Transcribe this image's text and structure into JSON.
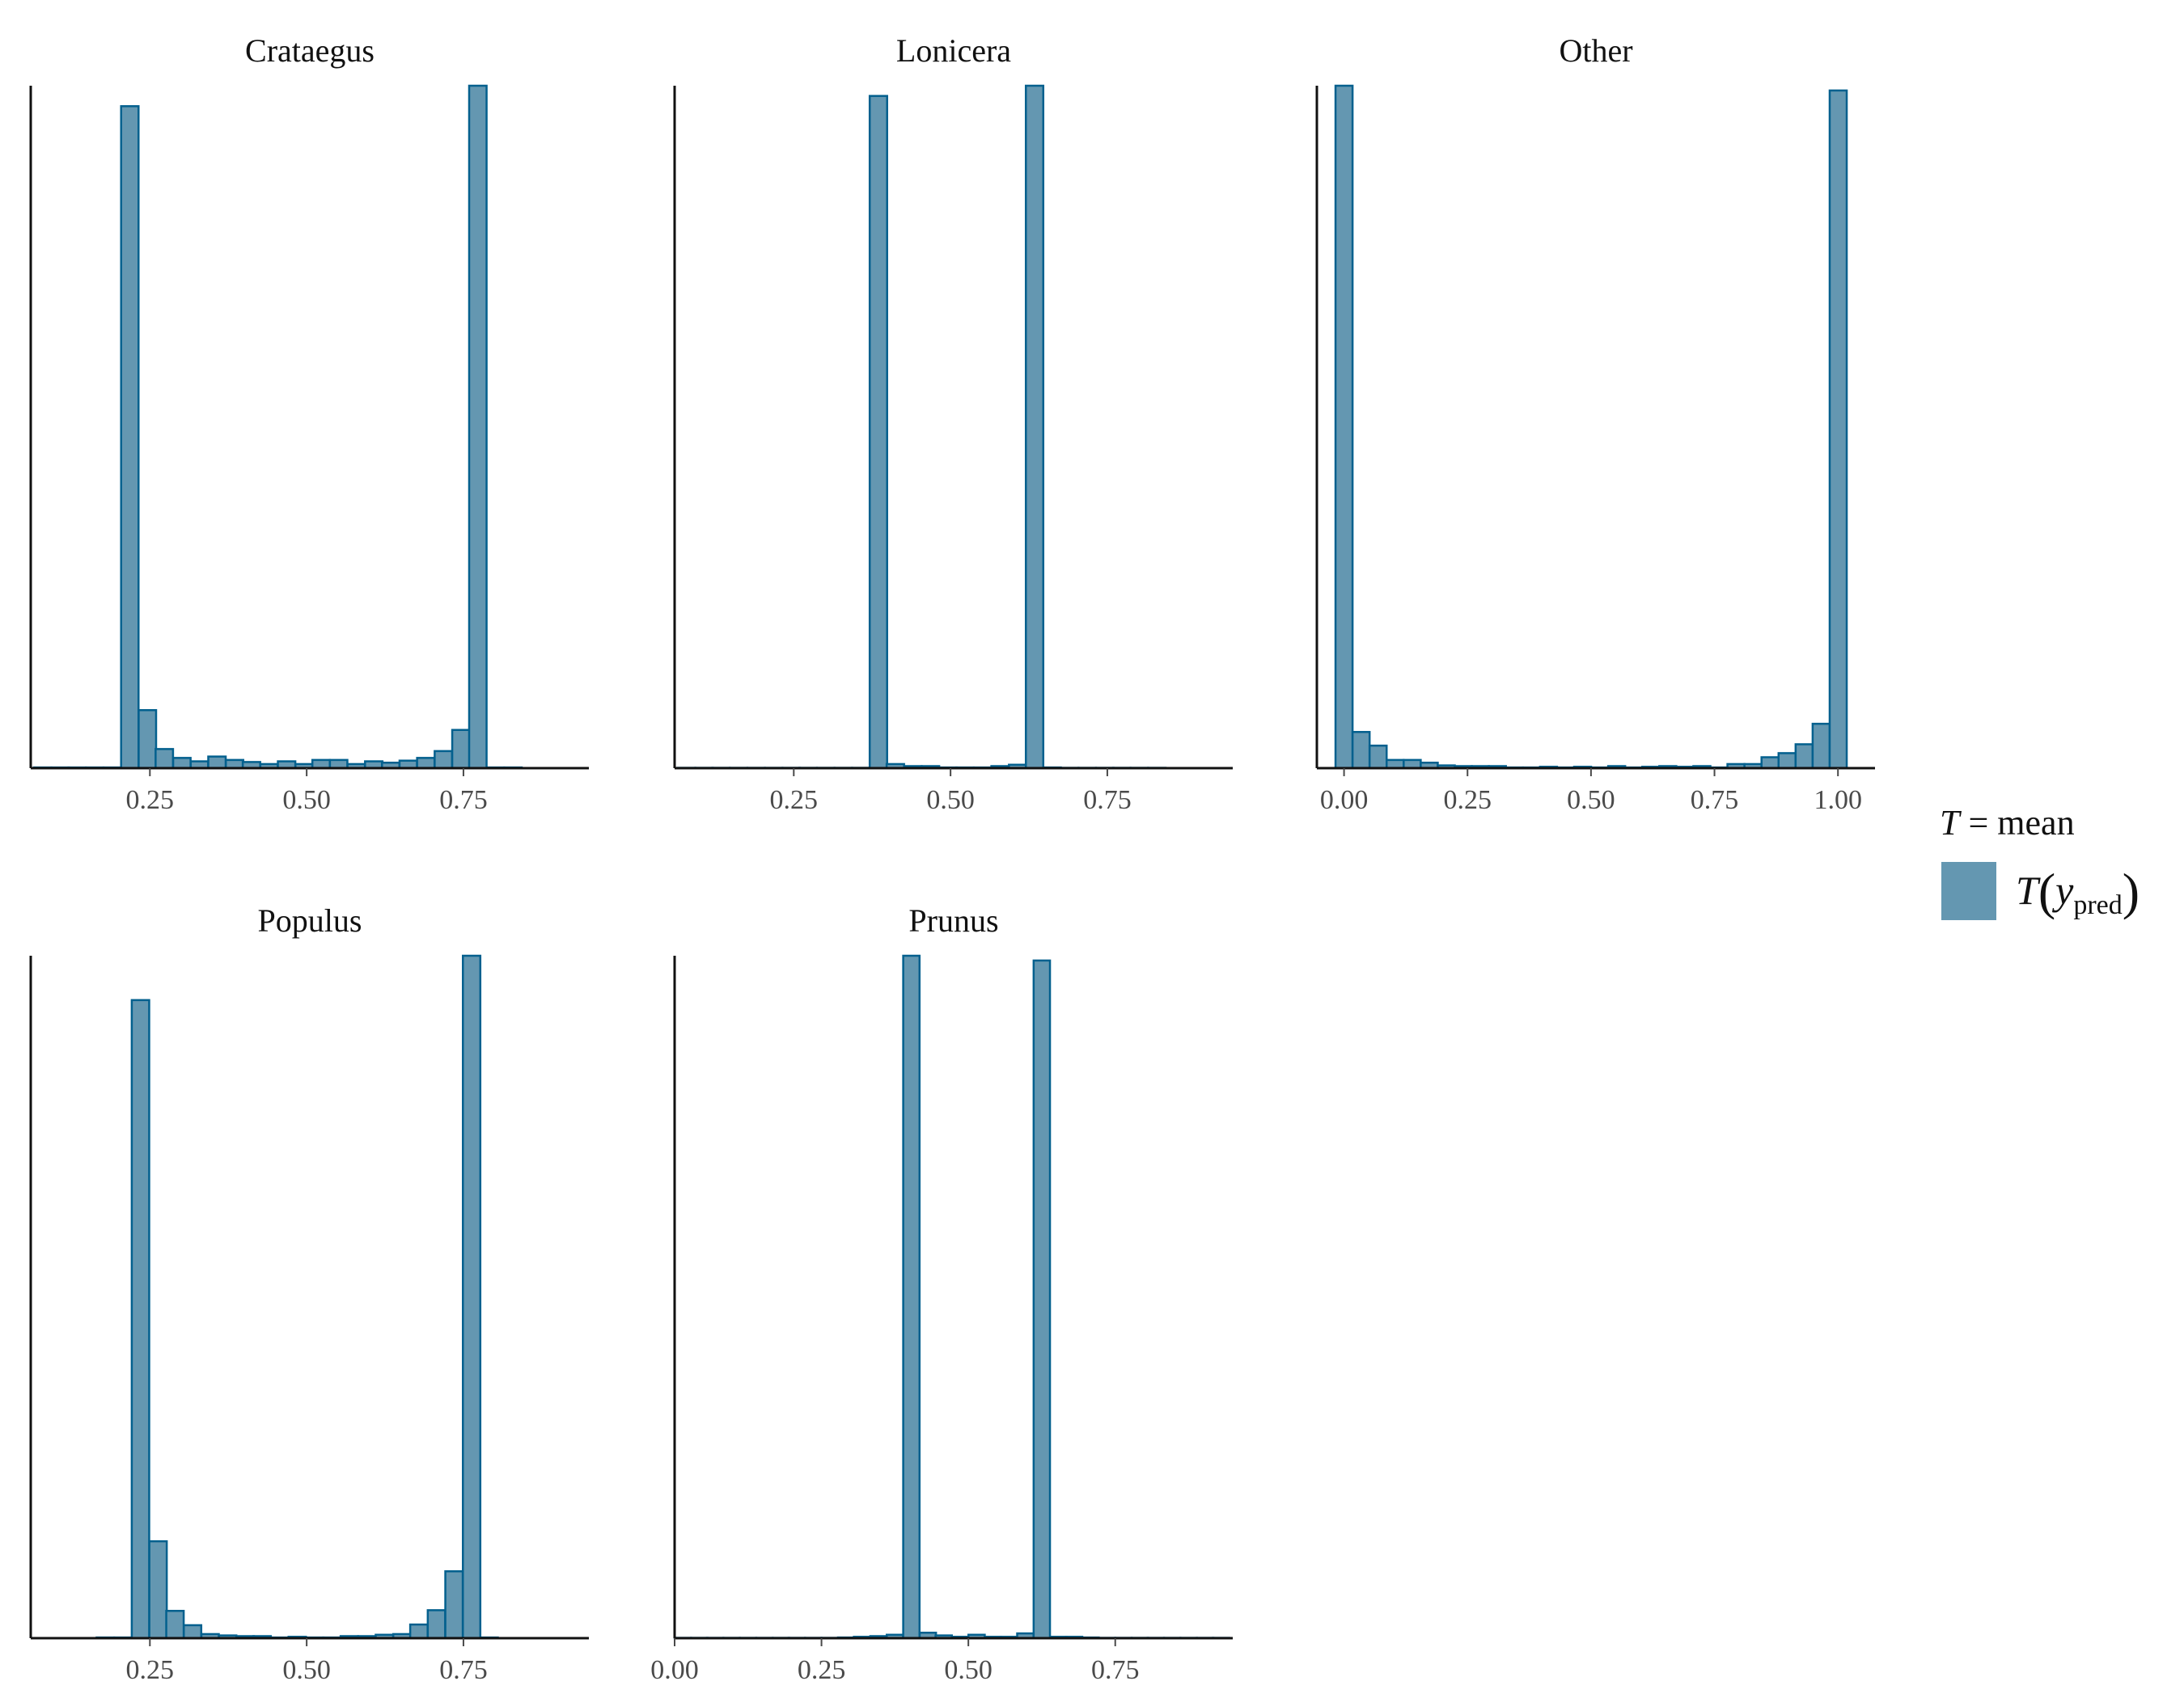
{
  "chart_data": {
    "type": "bar",
    "fill_color": "#6497b1",
    "edge_color": "#03608e",
    "legend": {
      "title_symbol": "T",
      "title_rest": " = mean",
      "entry_T": "T",
      "entry_y": "y",
      "entry_sub": "pred",
      "placement": "right"
    },
    "facets": [
      {
        "title": "Crataegus",
        "xlim": [
          0.06,
          0.95
        ],
        "ticks": [
          "0.25",
          "0.50",
          "0.75"
        ],
        "bar_width": 0.0278,
        "bins": [
          [
            0.079,
            0.1
          ],
          [
            0.107,
            0.1
          ],
          [
            0.134,
            0.1
          ],
          [
            0.162,
            0.1
          ],
          [
            0.19,
            0.1
          ],
          [
            0.218,
            97
          ],
          [
            0.246,
            8.5
          ],
          [
            0.273,
            2.8
          ],
          [
            0.301,
            1.5
          ],
          [
            0.329,
            1.0
          ],
          [
            0.357,
            1.7
          ],
          [
            0.385,
            1.2
          ],
          [
            0.412,
            0.9
          ],
          [
            0.44,
            0.6
          ],
          [
            0.468,
            1.0
          ],
          [
            0.496,
            0.6
          ],
          [
            0.523,
            1.2
          ],
          [
            0.551,
            1.2
          ],
          [
            0.579,
            0.6
          ],
          [
            0.607,
            1.0
          ],
          [
            0.634,
            0.8
          ],
          [
            0.662,
            1.1
          ],
          [
            0.69,
            1.5
          ],
          [
            0.718,
            2.5
          ],
          [
            0.746,
            5.6
          ],
          [
            0.773,
            100
          ],
          [
            0.801,
            0.1
          ],
          [
            0.829,
            0.1
          ]
        ]
      },
      {
        "title": "Lonicera",
        "xlim": [
          0.06,
          0.95
        ],
        "ticks": [
          "0.25",
          "0.50",
          "0.75"
        ],
        "bar_width": 0.0278,
        "bins": [
          [
            0.079,
            0.05
          ],
          [
            0.107,
            0.05
          ],
          [
            0.134,
            0.05
          ],
          [
            0.162,
            0.05
          ],
          [
            0.19,
            0.05
          ],
          [
            0.218,
            0.05
          ],
          [
            0.246,
            0.05
          ],
          [
            0.273,
            0.05
          ],
          [
            0.301,
            0.05
          ],
          [
            0.329,
            0.05
          ],
          [
            0.357,
            0.05
          ],
          [
            0.385,
            98.5
          ],
          [
            0.412,
            0.6
          ],
          [
            0.44,
            0.3
          ],
          [
            0.468,
            0.3
          ],
          [
            0.496,
            0.1
          ],
          [
            0.523,
            0.1
          ],
          [
            0.551,
            0.1
          ],
          [
            0.579,
            0.3
          ],
          [
            0.607,
            0.5
          ],
          [
            0.634,
            100
          ],
          [
            0.662,
            0.1
          ],
          [
            0.69,
            0.05
          ],
          [
            0.718,
            0.05
          ],
          [
            0.746,
            0.05
          ],
          [
            0.773,
            0.05
          ],
          [
            0.801,
            0.05
          ],
          [
            0.829,
            0.05
          ]
        ]
      },
      {
        "title": "Other",
        "xlim": [
          -0.055,
          1.075
        ],
        "ticks": [
          "0.00",
          "0.25",
          "0.50",
          "0.75",
          "1.00"
        ],
        "bar_width": 0.0345,
        "bins": [
          [
            0.0,
            100
          ],
          [
            0.0345,
            5.3
          ],
          [
            0.069,
            3.3
          ],
          [
            0.1035,
            1.2
          ],
          [
            0.138,
            1.2
          ],
          [
            0.1725,
            0.8
          ],
          [
            0.207,
            0.4
          ],
          [
            0.2415,
            0.3
          ],
          [
            0.276,
            0.3
          ],
          [
            0.3105,
            0.3
          ],
          [
            0.345,
            0.1
          ],
          [
            0.3795,
            0.1
          ],
          [
            0.414,
            0.2
          ],
          [
            0.4485,
            0.1
          ],
          [
            0.483,
            0.2
          ],
          [
            0.5175,
            0.1
          ],
          [
            0.552,
            0.3
          ],
          [
            0.5865,
            0.1
          ],
          [
            0.621,
            0.2
          ],
          [
            0.6555,
            0.3
          ],
          [
            0.69,
            0.2
          ],
          [
            0.7245,
            0.3
          ],
          [
            0.759,
            0.1
          ],
          [
            0.7935,
            0.6
          ],
          [
            0.828,
            0.6
          ],
          [
            0.8625,
            1.6
          ],
          [
            0.897,
            2.2
          ],
          [
            0.9315,
            3.5
          ],
          [
            0.966,
            6.5
          ],
          [
            1.0005,
            99.3
          ]
        ]
      },
      {
        "title": "Populus",
        "xlim": [
          0.06,
          0.95
        ],
        "ticks": [
          "0.25",
          "0.50",
          "0.75"
        ],
        "bar_width": 0.0278,
        "bins": [
          [
            0.179,
            0.1
          ],
          [
            0.207,
            0.1
          ],
          [
            0.235,
            93.5
          ],
          [
            0.263,
            14.2
          ],
          [
            0.29,
            4.0
          ],
          [
            0.318,
            1.9
          ],
          [
            0.346,
            0.6
          ],
          [
            0.374,
            0.4
          ],
          [
            0.402,
            0.3
          ],
          [
            0.429,
            0.3
          ],
          [
            0.457,
            0.1
          ],
          [
            0.485,
            0.2
          ],
          [
            0.513,
            0.1
          ],
          [
            0.54,
            0.1
          ],
          [
            0.568,
            0.3
          ],
          [
            0.596,
            0.3
          ],
          [
            0.624,
            0.5
          ],
          [
            0.652,
            0.6
          ],
          [
            0.679,
            2.0
          ],
          [
            0.707,
            4.1
          ],
          [
            0.735,
            9.8
          ],
          [
            0.763,
            100
          ],
          [
            0.791,
            0.1
          ]
        ]
      },
      {
        "title": "Prunus",
        "xlim": [
          0.0,
          0.95
        ],
        "ticks": [
          "0.00",
          "0.25",
          "0.50",
          "0.75"
        ],
        "bar_width": 0.0278,
        "bins": [
          [
            0.014,
            0.05
          ],
          [
            0.042,
            0.05
          ],
          [
            0.069,
            0.05
          ],
          [
            0.097,
            0.05
          ],
          [
            0.125,
            0.05
          ],
          [
            0.153,
            0.05
          ],
          [
            0.181,
            0.05
          ],
          [
            0.208,
            0.05
          ],
          [
            0.236,
            0.05
          ],
          [
            0.264,
            0.05
          ],
          [
            0.292,
            0.1
          ],
          [
            0.319,
            0.2
          ],
          [
            0.347,
            0.3
          ],
          [
            0.375,
            0.5
          ],
          [
            0.403,
            100
          ],
          [
            0.431,
            0.8
          ],
          [
            0.458,
            0.4
          ],
          [
            0.486,
            0.2
          ],
          [
            0.514,
            0.5
          ],
          [
            0.542,
            0.2
          ],
          [
            0.569,
            0.2
          ],
          [
            0.597,
            0.7
          ],
          [
            0.625,
            99.3
          ],
          [
            0.653,
            0.2
          ],
          [
            0.68,
            0.2
          ],
          [
            0.708,
            0.1
          ],
          [
            0.736,
            0.05
          ],
          [
            0.764,
            0.05
          ],
          [
            0.792,
            0.05
          ],
          [
            0.819,
            0.05
          ],
          [
            0.847,
            0.05
          ],
          [
            0.875,
            0.05
          ],
          [
            0.903,
            0.05
          ],
          [
            0.93,
            0.05
          ]
        ]
      }
    ]
  }
}
